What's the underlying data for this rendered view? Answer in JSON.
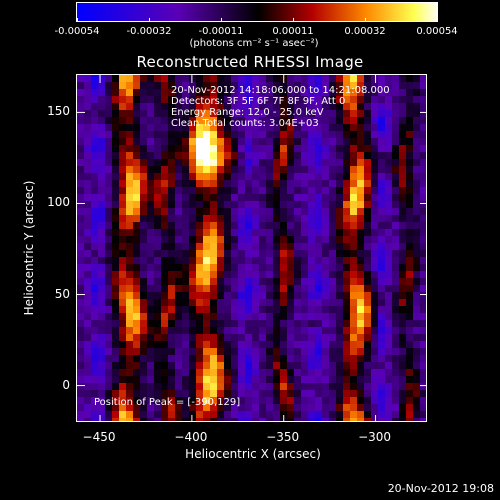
{
  "colorbar": {
    "ticks": [
      "-0.00054",
      "-0.00032",
      "-0.00011",
      "0.00011",
      "0.00032",
      "0.00054"
    ],
    "unit_label": "(photons cm⁻² s⁻¹ asec⁻²)",
    "range": [
      -0.00054,
      0.00054
    ],
    "colormap": [
      "#0000ff",
      "#5a00b4",
      "#000000",
      "#b40000",
      "#ff8a00",
      "#ffff50",
      "#ffffff"
    ]
  },
  "chart_data": {
    "type": "heatmap",
    "title": "Reconstructed RHESSI Image",
    "xlabel": "Heliocentric X (arcsec)",
    "ylabel": "Heliocentric Y (arcsec)",
    "xlim": [
      -462,
      -272
    ],
    "ylim": [
      -20,
      170
    ],
    "xticks": [
      -450,
      -400,
      -350,
      -300
    ],
    "yticks": [
      0,
      50,
      100,
      150
    ],
    "peak": {
      "x": -390,
      "y": 129
    }
  },
  "info": {
    "lines": [
      "20-Nov-2012 14:18:06.000 to 14:21:08.000",
      "Detectors: 3F 5F 6F 7F 8F 9F, Att 0",
      "Energy Range: 12.0 - 25.0 keV",
      "Clean     Total counts: 3.04E+03"
    ],
    "peak_text": "Position of Peak = [-390,129]"
  },
  "footer": {
    "timestamp": "20-Nov-2012 19:08"
  }
}
